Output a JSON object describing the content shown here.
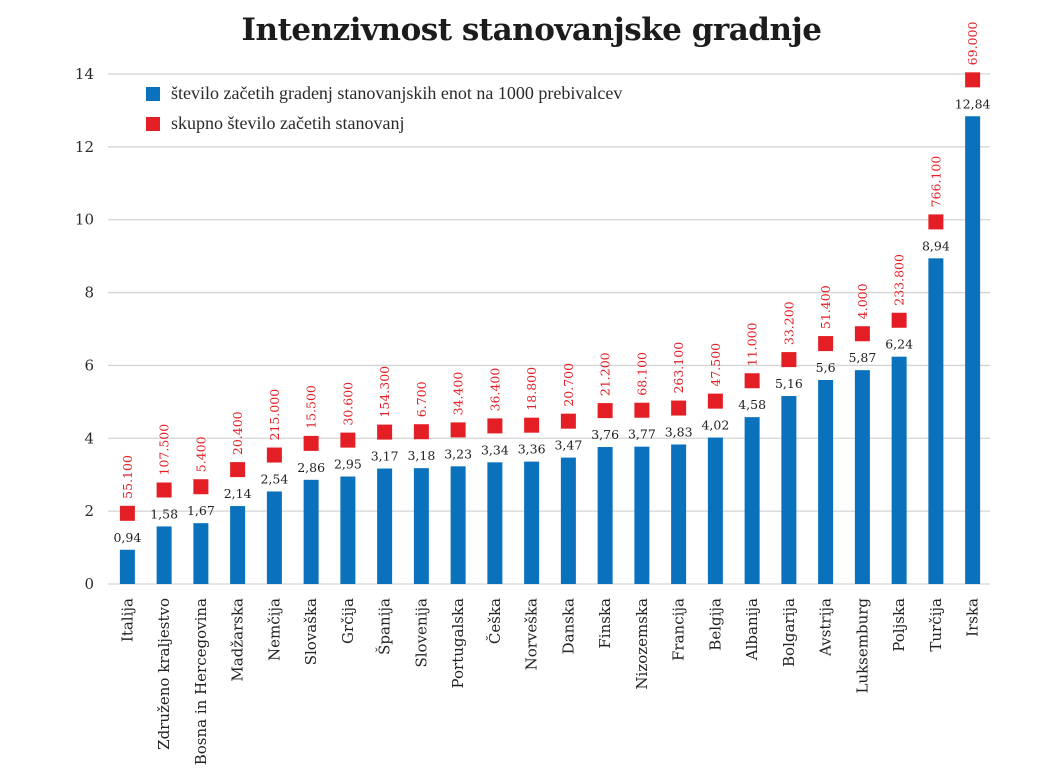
{
  "chart_data": {
    "type": "bar",
    "title": "Intenzivnost stanovanjske gradnje",
    "xlabel": "",
    "ylabel": "",
    "ylim": [
      0,
      14
    ],
    "yticks": [
      "0",
      "2",
      "4",
      "6",
      "8",
      "10",
      "12",
      "14"
    ],
    "grid": true,
    "legend_position": "top-left",
    "categories": [
      "Italija",
      "Združeno kraljestvo",
      "Bosna in Hercegovina",
      "Madžarska",
      "Nemčija",
      "Slovaška",
      "Grčija",
      "Španija",
      "Slovenija",
      "Portugalska",
      "Češka",
      "Norveška",
      "Danska",
      "Finska",
      "Nizozemska",
      "Francija",
      "Belgija",
      "Albanija",
      "Bolgarija",
      "Avstrija",
      "Luksemburg",
      "Poljska",
      "Turčija",
      "Irska"
    ],
    "series": [
      {
        "name": "število začetih gradenj stanovanjskih enot na 1000 prebivalcev",
        "color": "#0a72bd",
        "values": [
          0.94,
          1.58,
          1.67,
          2.14,
          2.54,
          2.86,
          2.95,
          3.17,
          3.18,
          3.23,
          3.34,
          3.36,
          3.47,
          3.76,
          3.77,
          3.83,
          4.02,
          4.58,
          5.16,
          5.6,
          5.87,
          6.24,
          8.94,
          12.84
        ],
        "labels": [
          "0,94",
          "1,58",
          "1,67",
          "2,14",
          "2,54",
          "2,86",
          "2,95",
          "3,17",
          "3,18",
          "3,23",
          "3,34",
          "3,36",
          "3,47",
          "3,76",
          "3,77",
          "3,83",
          "4,02",
          "4,58",
          "5,16",
          "5,6",
          "5,87",
          "6,24",
          "8,94",
          "12,84"
        ]
      },
      {
        "name": "skupno število začetih stanovanj",
        "color": "#e31e24",
        "values": [
          55100,
          107500,
          5400,
          20400,
          215000,
          15500,
          30600,
          154300,
          6700,
          34400,
          36400,
          18800,
          20700,
          21200,
          68100,
          263100,
          47500,
          11000,
          33200,
          51400,
          4000,
          233800,
          766100,
          69000
        ],
        "labels": [
          "55.100",
          "107.500",
          "5.400",
          "20.400",
          "215.000",
          "15.500",
          "30.600",
          "154.300",
          "6.700",
          "34.400",
          "36.400",
          "18.800",
          "20.700",
          "21.200",
          "68.100",
          "263.100",
          "47.500",
          "11.000",
          "33.200",
          "51.400",
          "4.000",
          "233.800",
          "766.100",
          "69.000"
        ]
      }
    ]
  }
}
